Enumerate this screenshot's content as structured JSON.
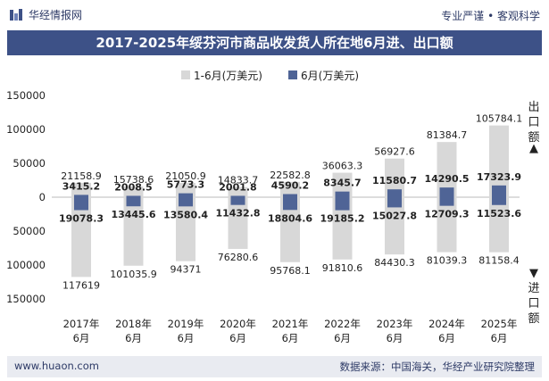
{
  "header": {
    "brand": "华经情报网",
    "tagline": "专业严谨 • 客观科学"
  },
  "chart_data": {
    "type": "bar",
    "title": "2017-2025年绥芬河市商品收发货人所在地6月进、出口额",
    "categories": [
      "2017年\n6月",
      "2018年\n6月",
      "2019年\n6月",
      "2020年\n6月",
      "2021年\n6月",
      "2022年\n6月",
      "2023年\n6月",
      "2024年\n6月",
      "2025年\n6月"
    ],
    "series": [
      {
        "name": "1-6月(万美元)",
        "color": "#d8d8d8",
        "export": [
          21158.9,
          15738.6,
          21050.9,
          14833.7,
          22582.8,
          36063.3,
          56927.6,
          81384.7,
          105784.1
        ],
        "import": [
          117619,
          101035.9,
          94371,
          76280.6,
          95768.1,
          91810.6,
          84430.3,
          81039.3,
          81158.4
        ],
        "export_labels": [
          "21158.9",
          "15738.6",
          "21050.9",
          "14833.7",
          "22582.8",
          "36063.3",
          "56927.6",
          "81384.7",
          "105784.1"
        ],
        "import_labels": [
          "117619",
          "101035.9",
          "94371",
          "76280.6",
          "95768.1",
          "91810.6",
          "84430.3",
          "81039.3",
          "81158.4"
        ]
      },
      {
        "name": "6月(万美元)",
        "color": "#4f6496",
        "export": [
          3415.2,
          2008.5,
          5773.3,
          2001.8,
          4590.2,
          8345.7,
          11580.7,
          14290.5,
          17323.9
        ],
        "import": [
          19078.3,
          13445.6,
          13580.4,
          11432.8,
          18804.6,
          19185.2,
          15027.8,
          12709.3,
          11523.6
        ],
        "export_labels": [
          "3415.2",
          "2008.5",
          "5773.3",
          "2001.8",
          "4590.2",
          "8345.7",
          "11580.7",
          "14290.5",
          "17323.9"
        ],
        "import_labels": [
          "19078.3",
          "13445.6",
          "13580.4",
          "11432.8",
          "18804.6",
          "19185.2",
          "15027.8",
          "12709.3",
          "11523.6"
        ]
      }
    ],
    "y_ticks": [
      "150000",
      "100000",
      "50000",
      "0",
      "50000",
      "100000",
      "150000"
    ],
    "ylim": [
      -150000,
      150000
    ],
    "side_labels": {
      "top": "出口额",
      "bottom": "进口额",
      "up_arrow": "▲",
      "down_arrow": "▼"
    },
    "legend_position": "top-center"
  },
  "footer": {
    "site": "www.huaon.com",
    "source": "数据来源：中国海关，华经产业研究院整理"
  },
  "colors": {
    "brand": "#3d5187",
    "gray_bar": "#d8d8d8",
    "blue_box": "#4f6496"
  }
}
